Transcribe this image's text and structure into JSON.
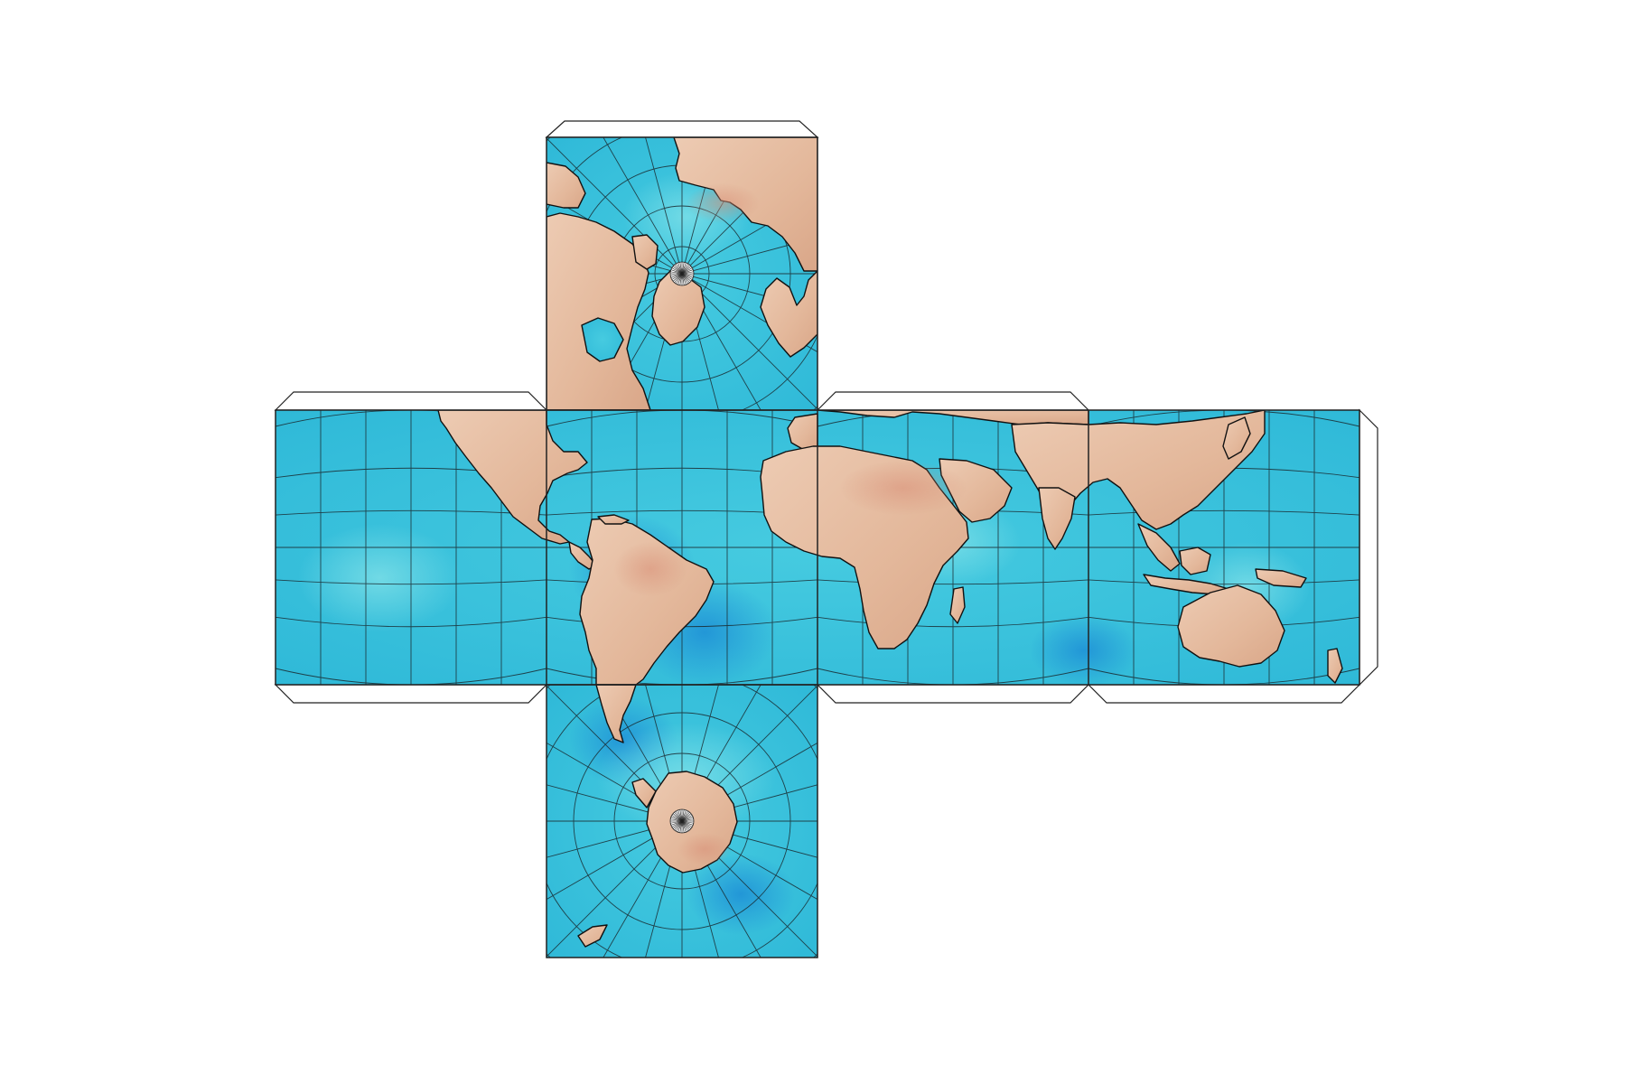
{
  "map": {
    "projection": "cube",
    "style": "watercolor",
    "faces": [
      "north-polar",
      "americas",
      "africa-europe",
      "asia-oceania",
      "pacific",
      "south-polar"
    ],
    "colors": {
      "ocean": "#3fc6dc",
      "ocean_deep": "#1f9fd6",
      "ocean_light": "#6fdbe6",
      "land": "#e8c2a6",
      "land_dark": "#d9a585",
      "coastline": "#111111",
      "graticule": "#1a2a30",
      "tab_fill": "#ffffff",
      "tab_stroke": "#222222"
    },
    "graticule_step_deg": 15
  }
}
